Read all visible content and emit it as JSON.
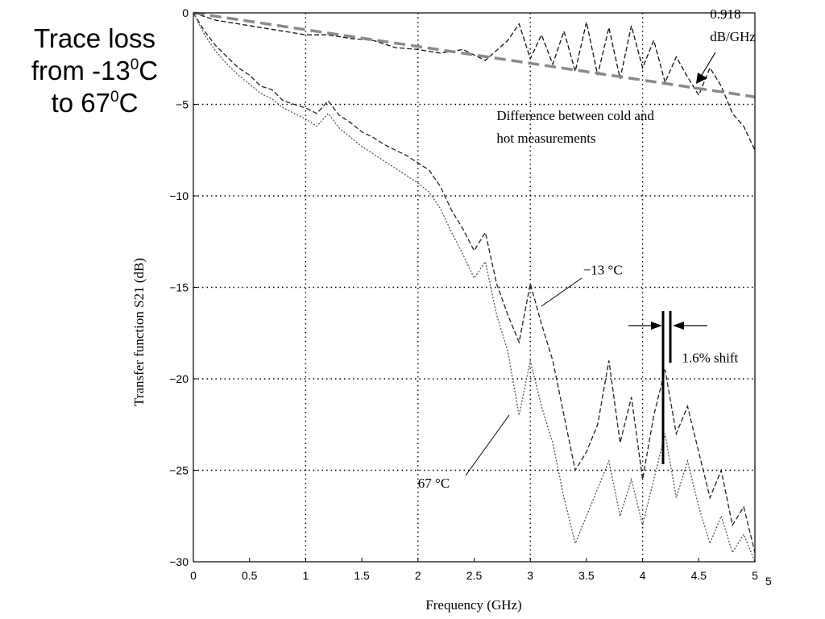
{
  "slide": {
    "title_line1": "Trace loss",
    "title_line2_pre": "from -13",
    "title_line2_sup": "0",
    "title_line2_post": "C",
    "title_line3_pre": "to 67",
    "title_line3_sup": "0",
    "title_line3_post": "C",
    "page_number": "5"
  },
  "chart_data": {
    "type": "line",
    "xlabel": "Frequency (GHz)",
    "ylabel": "Transfer function S21 (dB)",
    "xlim": [
      0,
      5
    ],
    "ylim": [
      -30,
      0
    ],
    "xticks": [
      "0",
      "0.5",
      "1",
      "1.5",
      "2",
      "2.5",
      "3",
      "3.5",
      "4",
      "4.5",
      "5"
    ],
    "yticks": [
      "0",
      "-5",
      "-10",
      "-15",
      "-20",
      "-25",
      "-30"
    ],
    "grid": true,
    "series": [
      {
        "name": "-13 °C",
        "style": "dashed",
        "color": "#222222",
        "x": [
          0,
          0.1,
          0.2,
          0.3,
          0.4,
          0.5,
          0.6,
          0.7,
          0.8,
          0.9,
          1.0,
          1.1,
          1.2,
          1.3,
          1.4,
          1.5,
          1.6,
          1.7,
          1.8,
          1.9,
          2.0,
          2.1,
          2.2,
          2.3,
          2.4,
          2.5,
          2.6,
          2.7,
          2.8,
          2.9,
          3.0,
          3.1,
          3.2,
          3.3,
          3.4,
          3.5,
          3.6,
          3.7,
          3.8,
          3.9,
          4.0,
          4.1,
          4.2,
          4.3,
          4.4,
          4.5,
          4.6,
          4.7,
          4.8,
          4.9,
          5.0
        ],
        "y": [
          0,
          -1.0,
          -1.8,
          -2.4,
          -3.0,
          -3.4,
          -4.0,
          -4.2,
          -4.8,
          -5.0,
          -5.2,
          -5.5,
          -4.8,
          -5.6,
          -6.0,
          -6.5,
          -6.8,
          -7.2,
          -7.5,
          -7.8,
          -8.2,
          -8.6,
          -9.5,
          -10.8,
          -11.8,
          -13.0,
          -12.0,
          -14.8,
          -16.5,
          -18.0,
          -14.8,
          -17.0,
          -19.0,
          -22.0,
          -25.0,
          -24.0,
          -22.5,
          -19.0,
          -23.5,
          -21.0,
          -25.5,
          -22.0,
          -19.5,
          -23.0,
          -21.5,
          -24.0,
          -26.5,
          -25.0,
          -28.0,
          -27.0,
          -29.5
        ]
      },
      {
        "name": "67 °C",
        "style": "dotted",
        "color": "#555555",
        "x": [
          0,
          0.1,
          0.2,
          0.3,
          0.4,
          0.5,
          0.6,
          0.7,
          0.8,
          0.9,
          1.0,
          1.1,
          1.2,
          1.3,
          1.4,
          1.5,
          1.6,
          1.7,
          1.8,
          1.9,
          2.0,
          2.1,
          2.2,
          2.3,
          2.4,
          2.5,
          2.6,
          2.7,
          2.8,
          2.9,
          3.0,
          3.1,
          3.2,
          3.3,
          3.4,
          3.5,
          3.6,
          3.7,
          3.8,
          3.9,
          4.0,
          4.1,
          4.2,
          4.3,
          4.4,
          4.5,
          4.6,
          4.7,
          4.8,
          4.9,
          5.0
        ],
        "y": [
          0,
          -1.2,
          -2.1,
          -2.8,
          -3.4,
          -3.9,
          -4.4,
          -4.7,
          -5.2,
          -5.5,
          -5.8,
          -6.2,
          -5.5,
          -6.3,
          -6.8,
          -7.3,
          -7.7,
          -8.1,
          -8.5,
          -8.9,
          -9.3,
          -9.8,
          -10.7,
          -12.0,
          -13.2,
          -14.5,
          -13.6,
          -16.5,
          -18.5,
          -22.0,
          -19.0,
          -21.5,
          -23.5,
          -26.5,
          -29.0,
          -27.5,
          -26.0,
          -24.5,
          -27.5,
          -25.5,
          -28.0,
          -25.5,
          -23.0,
          -26.5,
          -24.5,
          -27.0,
          -29.0,
          -27.5,
          -29.5,
          -28.5,
          -30.0
        ]
      },
      {
        "name": "Difference between cold and hot measurements",
        "style": "dashed",
        "color": "#111111",
        "x": [
          0,
          0.2,
          0.4,
          0.6,
          0.8,
          1.0,
          1.2,
          1.4,
          1.6,
          1.8,
          2.0,
          2.2,
          2.4,
          2.6,
          2.8,
          2.9,
          3.0,
          3.1,
          3.2,
          3.3,
          3.4,
          3.5,
          3.6,
          3.7,
          3.8,
          3.9,
          4.0,
          4.1,
          4.2,
          4.3,
          4.4,
          4.5,
          4.6,
          4.7,
          4.8,
          4.9,
          5.0
        ],
        "y": [
          0,
          -0.4,
          -0.6,
          -0.8,
          -1.0,
          -1.2,
          -1.2,
          -1.4,
          -1.5,
          -1.9,
          -2.0,
          -2.2,
          -2.0,
          -2.6,
          -1.5,
          -0.6,
          -2.5,
          -1.2,
          -2.8,
          -1.0,
          -3.2,
          -0.5,
          -3.4,
          -0.8,
          -3.6,
          -0.7,
          -3.0,
          -1.5,
          -3.8,
          -2.4,
          -3.5,
          -4.5,
          -3.0,
          -4.0,
          -5.5,
          -6.2,
          -7.5
        ]
      },
      {
        "name": "0.918 dB/GHz",
        "style": "long-dash",
        "color": "#8a8a8a",
        "x": [
          0,
          5
        ],
        "y": [
          0,
          -4.59
        ]
      }
    ],
    "annotations": [
      {
        "text": "0.918",
        "x": 4.6,
        "y": -0.3
      },
      {
        "text": "dB/GHz",
        "x": 4.6,
        "y": -1.55
      },
      {
        "text": "Difference between cold and",
        "x": 2.7,
        "y": -5.85
      },
      {
        "text": "hot measurements",
        "x": 2.7,
        "y": -7.1
      },
      {
        "text": "−13 °C",
        "x": 3.47,
        "y": -14.3
      },
      {
        "text": "67 °C",
        "x": 2.0,
        "y": -25.95
      },
      {
        "text": "1.6% shift",
        "x": 4.35,
        "y": -19.1
      }
    ]
  }
}
